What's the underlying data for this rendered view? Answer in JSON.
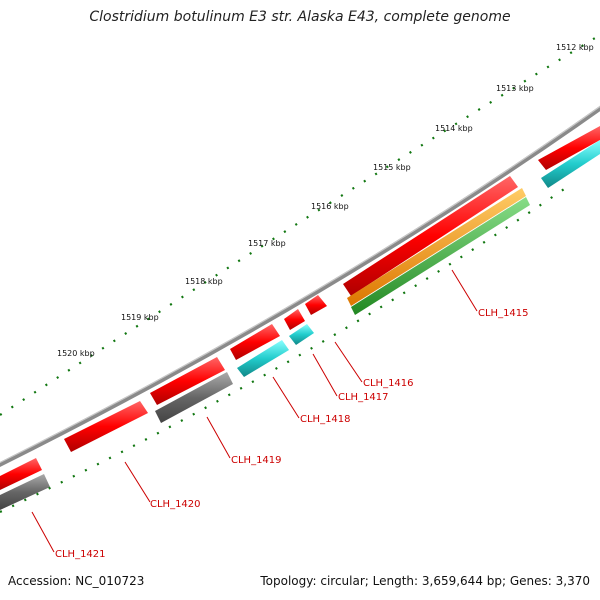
{
  "title": "Clostridium botulinum E3 str. Alaska E43, complete genome",
  "footer": {
    "accession": "Accession: NC_010723",
    "summary": "Topology: circular; Length: 3,659,644 bp; Genes: 3,370"
  },
  "tick_labels": [
    "1512 kbp",
    "1513 kbp",
    "1514 kbp",
    "1515 kbp",
    "1516 kbp",
    "1517 kbp",
    "1518 kbp",
    "1519 kbp",
    "1520 kbp"
  ],
  "genes": [
    {
      "label": "CLH_1415"
    },
    {
      "label": "CLH_1416"
    },
    {
      "label": "CLH_1417"
    },
    {
      "label": "CLH_1418"
    },
    {
      "label": "CLH_1419"
    },
    {
      "label": "CLH_1420"
    },
    {
      "label": "CLH_1421"
    }
  ],
  "colors": {
    "backbone": "#8a8a8a",
    "forward_cds": "#ee0000",
    "reverse_cds_cyan": "#22cccc",
    "reverse_cds_gray": "#6b6b6b",
    "orange_feature": "#ff9900",
    "green_feature": "#33aa33",
    "tick": "#117711",
    "gene_label": "#cc0000"
  }
}
